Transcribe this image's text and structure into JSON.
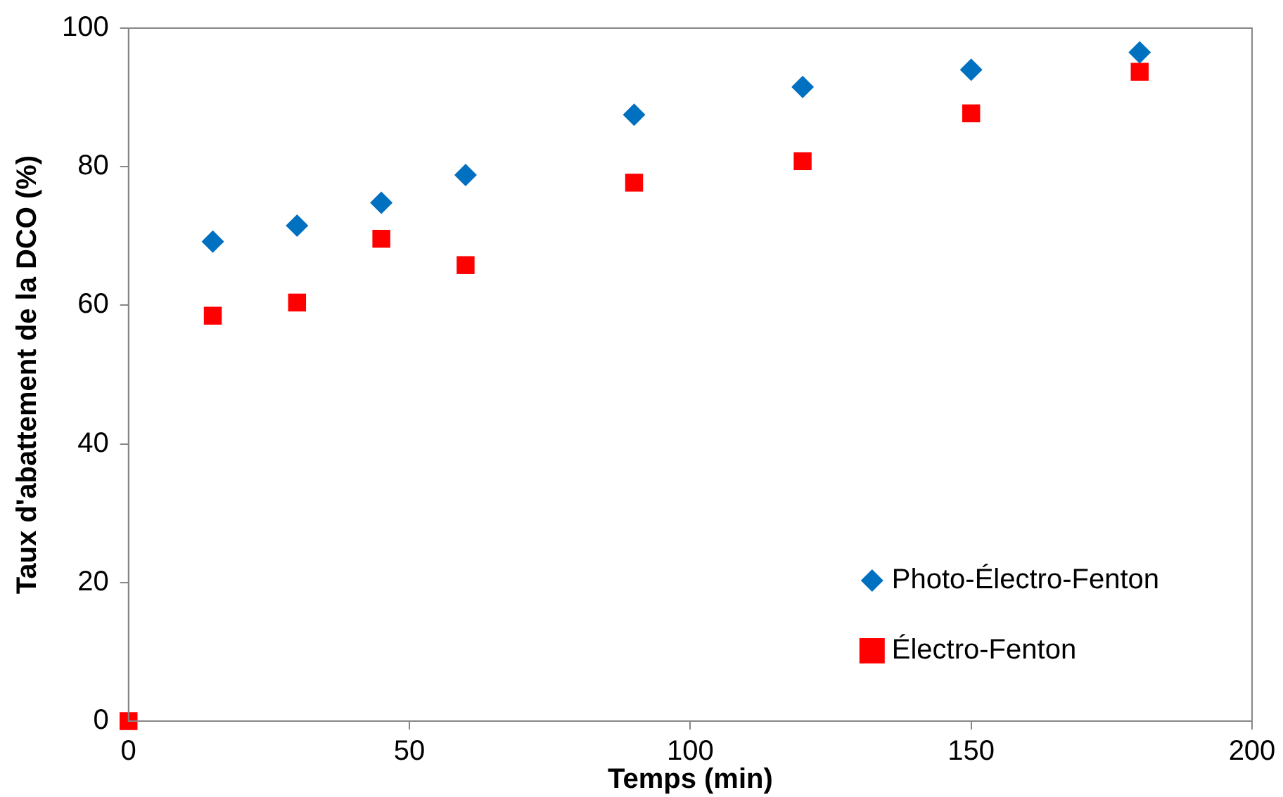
{
  "chart_data": {
    "type": "scatter",
    "xlabel": "Temps (min)",
    "ylabel": "Taux d'abattement de la DCO (%)",
    "xlim": [
      0,
      200
    ],
    "xticks": [
      0,
      50,
      100,
      150,
      200
    ],
    "ylim": [
      0,
      100
    ],
    "yticks": [
      0,
      20,
      40,
      60,
      80,
      100
    ],
    "grid": false,
    "legend": "bottom right",
    "series": [
      {
        "name": "Photo-Électro-Fenton",
        "color": "#0070c0",
        "marker": "diamond",
        "x": [
          15,
          30,
          45,
          60,
          90,
          120,
          150,
          180
        ],
        "values": [
          69.2,
          71.5,
          74.8,
          78.8,
          87.5,
          91.5,
          94,
          96.5
        ]
      },
      {
        "name": "Électro-Fenton",
        "color": "#ff0000",
        "marker": "square",
        "x": [
          0,
          15,
          30,
          45,
          60,
          90,
          120,
          150,
          180
        ],
        "values": [
          0,
          58.5,
          60.4,
          69.6,
          65.8,
          77.7,
          80.8,
          87.7,
          93.7
        ]
      }
    ]
  }
}
